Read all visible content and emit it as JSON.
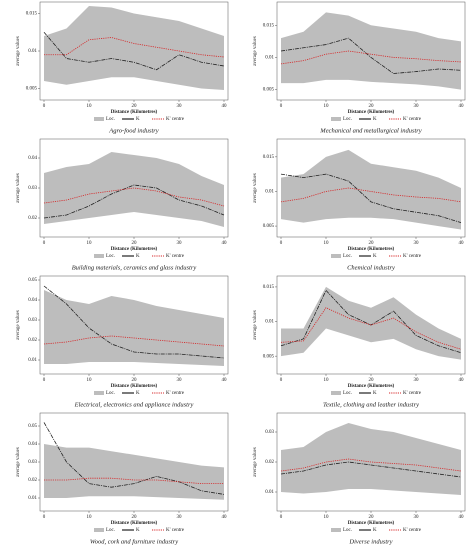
{
  "chart_data": [
    {
      "type": "line",
      "caption": "Agro-food industry",
      "xlabel": "Distance (Kilometres)",
      "ylabel": "average values",
      "x": [
        0,
        5,
        10,
        15,
        20,
        25,
        30,
        35,
        40
      ],
      "xlim": [
        0,
        40
      ],
      "xticks": [
        0,
        10,
        20,
        30,
        40
      ],
      "ylim": [
        0.004,
        0.016
      ],
      "yticks": [
        0.005,
        0.01,
        0.015
      ],
      "band": {
        "name": "Loc.",
        "color": "#bdbdbd",
        "upper": [
          0.012,
          0.013,
          0.016,
          0.0158,
          0.015,
          0.0145,
          0.014,
          0.013,
          0.012
        ],
        "lower": [
          0.006,
          0.0055,
          0.006,
          0.0065,
          0.0065,
          0.006,
          0.0055,
          0.005,
          0.0048
        ]
      },
      "series": [
        {
          "name": "K",
          "color": "#222222",
          "values": [
            0.0125,
            0.009,
            0.0085,
            0.009,
            0.0085,
            0.0075,
            0.0095,
            0.0085,
            0.008
          ]
        },
        {
          "name": "K' centre",
          "color": "#d62728",
          "values": [
            0.0095,
            0.0095,
            0.0115,
            0.0118,
            0.011,
            0.0105,
            0.01,
            0.0095,
            0.0092
          ]
        }
      ]
    },
    {
      "type": "line",
      "caption": "Mechanical and metallurgical industry",
      "xlabel": "Distance (Kilometres)",
      "ylabel": "average values",
      "x": [
        0,
        5,
        10,
        15,
        20,
        25,
        30,
        35,
        40
      ],
      "xlim": [
        0,
        40
      ],
      "xticks": [
        0,
        10,
        20,
        30,
        40
      ],
      "ylim": [
        0.004,
        0.018
      ],
      "yticks": [
        0.005,
        0.01,
        0.015
      ],
      "band": {
        "name": "Loc.",
        "color": "#bdbdbd",
        "upper": [
          0.013,
          0.014,
          0.017,
          0.0165,
          0.015,
          0.0145,
          0.014,
          0.013,
          0.0125
        ],
        "lower": [
          0.006,
          0.006,
          0.0065,
          0.0065,
          0.0062,
          0.006,
          0.0058,
          0.0055,
          0.005
        ]
      },
      "series": [
        {
          "name": "K",
          "color": "#222222",
          "values": [
            0.011,
            0.0115,
            0.012,
            0.013,
            0.01,
            0.0075,
            0.0078,
            0.0082,
            0.008
          ]
        },
        {
          "name": "K' centre",
          "color": "#d62728",
          "values": [
            0.009,
            0.0095,
            0.0105,
            0.011,
            0.0105,
            0.01,
            0.0098,
            0.0095,
            0.0093
          ]
        }
      ]
    },
    {
      "type": "line",
      "caption": "Building materials, ceramics and glass industry",
      "xlabel": "Distance (Kilometres)",
      "ylabel": "average values",
      "x": [
        0,
        5,
        10,
        15,
        20,
        25,
        30,
        35,
        40
      ],
      "xlim": [
        0,
        40
      ],
      "xticks": [
        0,
        10,
        20,
        30,
        40
      ],
      "ylim": [
        0.015,
        0.045
      ],
      "yticks": [
        0.02,
        0.03,
        0.04
      ],
      "band": {
        "name": "Loc.",
        "color": "#bdbdbd",
        "upper": [
          0.035,
          0.037,
          0.038,
          0.042,
          0.041,
          0.04,
          0.038,
          0.034,
          0.031
        ],
        "lower": [
          0.018,
          0.019,
          0.02,
          0.021,
          0.022,
          0.021,
          0.02,
          0.019,
          0.017
        ]
      },
      "series": [
        {
          "name": "K",
          "color": "#222222",
          "values": [
            0.02,
            0.021,
            0.024,
            0.028,
            0.031,
            0.03,
            0.026,
            0.024,
            0.021
          ]
        },
        {
          "name": "K' centre",
          "color": "#d62728",
          "values": [
            0.025,
            0.026,
            0.028,
            0.029,
            0.03,
            0.029,
            0.027,
            0.026,
            0.024
          ]
        }
      ]
    },
    {
      "type": "line",
      "caption": "Chemical industry",
      "xlabel": "Distance (Kilometres)",
      "ylabel": "average values",
      "x": [
        0,
        5,
        10,
        15,
        20,
        25,
        30,
        35,
        40
      ],
      "xlim": [
        0,
        40
      ],
      "xticks": [
        0,
        10,
        20,
        30,
        40
      ],
      "ylim": [
        0.004,
        0.017
      ],
      "yticks": [
        0.005,
        0.01,
        0.015
      ],
      "band": {
        "name": "Loc.",
        "color": "#bdbdbd",
        "upper": [
          0.012,
          0.0125,
          0.015,
          0.016,
          0.014,
          0.0135,
          0.013,
          0.012,
          0.0105
        ],
        "lower": [
          0.006,
          0.0055,
          0.006,
          0.0062,
          0.0062,
          0.006,
          0.0055,
          0.005,
          0.0045
        ]
      },
      "series": [
        {
          "name": "K",
          "color": "#222222",
          "values": [
            0.0125,
            0.012,
            0.0125,
            0.0115,
            0.0085,
            0.0075,
            0.007,
            0.0065,
            0.0055
          ]
        },
        {
          "name": "K' centre",
          "color": "#d62728",
          "values": [
            0.0085,
            0.009,
            0.01,
            0.0105,
            0.01,
            0.0095,
            0.0092,
            0.009,
            0.0085
          ]
        }
      ]
    },
    {
      "type": "line",
      "caption": "Electrical, electronics and appliance industry",
      "xlabel": "Distance (Kilometres)",
      "ylabel": "average values",
      "x": [
        0,
        5,
        10,
        15,
        20,
        25,
        30,
        35,
        40
      ],
      "xlim": [
        0,
        40
      ],
      "xticks": [
        0,
        10,
        20,
        30,
        40
      ],
      "ylim": [
        0.005,
        0.05
      ],
      "yticks": [
        0.01,
        0.02,
        0.03,
        0.04,
        0.05
      ],
      "band": {
        "name": "Loc.",
        "color": "#bdbdbd",
        "upper": [
          0.045,
          0.04,
          0.038,
          0.042,
          0.04,
          0.037,
          0.035,
          0.033,
          0.031
        ],
        "lower": [
          0.008,
          0.008,
          0.009,
          0.009,
          0.009,
          0.0085,
          0.008,
          0.0075,
          0.007
        ]
      },
      "series": [
        {
          "name": "K",
          "color": "#222222",
          "values": [
            0.047,
            0.038,
            0.026,
            0.018,
            0.014,
            0.013,
            0.013,
            0.012,
            0.011
          ]
        },
        {
          "name": "K' centre",
          "color": "#d62728",
          "values": [
            0.018,
            0.019,
            0.021,
            0.022,
            0.021,
            0.02,
            0.019,
            0.018,
            0.017
          ]
        }
      ]
    },
    {
      "type": "line",
      "caption": "Textile, clothing and leather industry",
      "xlabel": "Distance (Kilometres)",
      "ylabel": "average values",
      "x": [
        0,
        5,
        10,
        15,
        20,
        25,
        30,
        35,
        40
      ],
      "xlim": [
        0,
        40
      ],
      "xticks": [
        0,
        10,
        20,
        30,
        40
      ],
      "ylim": [
        0.003,
        0.016
      ],
      "yticks": [
        0.005,
        0.01,
        0.015
      ],
      "band": {
        "name": "Loc.",
        "color": "#bdbdbd",
        "upper": [
          0.009,
          0.009,
          0.015,
          0.013,
          0.012,
          0.0135,
          0.011,
          0.009,
          0.0075
        ],
        "lower": [
          0.005,
          0.0055,
          0.009,
          0.008,
          0.007,
          0.0075,
          0.006,
          0.005,
          0.0045
        ]
      },
      "series": [
        {
          "name": "K",
          "color": "#222222",
          "values": [
            0.0065,
            0.0075,
            0.0145,
            0.011,
            0.0095,
            0.0115,
            0.008,
            0.0065,
            0.0055
          ]
        },
        {
          "name": "K' centre",
          "color": "#d62728",
          "values": [
            0.007,
            0.0072,
            0.012,
            0.0105,
            0.0095,
            0.0105,
            0.0085,
            0.007,
            0.006
          ]
        }
      ]
    },
    {
      "type": "line",
      "caption": "Wood, cork and furniture industry",
      "xlabel": "Distance (Kilometres)",
      "ylabel": "average values",
      "x": [
        0,
        5,
        10,
        15,
        20,
        25,
        30,
        35,
        40
      ],
      "xlim": [
        0,
        40
      ],
      "xticks": [
        0,
        10,
        20,
        30,
        40
      ],
      "ylim": [
        0.005,
        0.055
      ],
      "yticks": [
        0.01,
        0.02,
        0.03,
        0.04,
        0.05
      ],
      "band": {
        "name": "Loc.",
        "color": "#bdbdbd",
        "upper": [
          0.04,
          0.038,
          0.038,
          0.036,
          0.034,
          0.032,
          0.03,
          0.028,
          0.027
        ],
        "lower": [
          0.01,
          0.01,
          0.011,
          0.011,
          0.011,
          0.0105,
          0.01,
          0.0095,
          0.009
        ]
      },
      "series": [
        {
          "name": "K",
          "color": "#222222",
          "values": [
            0.052,
            0.03,
            0.018,
            0.016,
            0.018,
            0.022,
            0.019,
            0.014,
            0.012
          ]
        },
        {
          "name": "K' centre",
          "color": "#d62728",
          "values": [
            0.02,
            0.02,
            0.021,
            0.021,
            0.02,
            0.02,
            0.019,
            0.018,
            0.018
          ]
        }
      ]
    },
    {
      "type": "line",
      "caption": "Diverse industry",
      "xlabel": "Distance (Kilometres)",
      "ylabel": "average values",
      "x": [
        0,
        5,
        10,
        15,
        20,
        25,
        30,
        35,
        40
      ],
      "xlim": [
        0,
        40
      ],
      "xticks": [
        0,
        10,
        20,
        30,
        40
      ],
      "ylim": [
        0.005,
        0.035
      ],
      "yticks": [
        0.01,
        0.02,
        0.03
      ],
      "band": {
        "name": "Loc.",
        "color": "#bdbdbd",
        "upper": [
          0.024,
          0.025,
          0.03,
          0.033,
          0.031,
          0.03,
          0.028,
          0.026,
          0.024
        ],
        "lower": [
          0.01,
          0.0095,
          0.01,
          0.011,
          0.011,
          0.0105,
          0.01,
          0.0095,
          0.009
        ]
      },
      "series": [
        {
          "name": "K",
          "color": "#222222",
          "values": [
            0.016,
            0.017,
            0.019,
            0.02,
            0.019,
            0.018,
            0.017,
            0.016,
            0.015
          ]
        },
        {
          "name": "K' centre",
          "color": "#d62728",
          "values": [
            0.017,
            0.018,
            0.02,
            0.021,
            0.02,
            0.0195,
            0.019,
            0.018,
            0.017
          ]
        }
      ]
    }
  ]
}
